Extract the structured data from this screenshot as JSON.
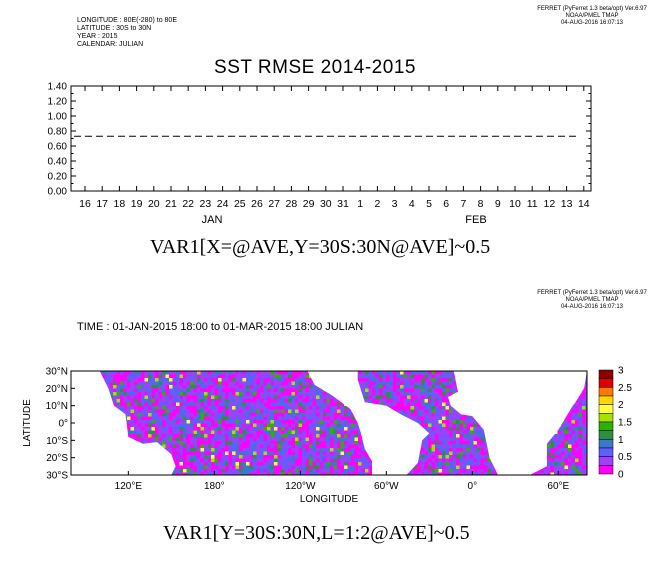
{
  "top_meta": {
    "longitude": "LONGITUDE : 80E(-280) to 80E",
    "latitude": "LATITUDE : 30S to 30N",
    "year": "YEAR : 2015",
    "calendar": "CALENDAR: JULIAN"
  },
  "ferret_credit_1": {
    "line1": "FERRET (PyFerret 1.3 beta/opt) Ver.6.97",
    "line2": "NOAA/PMEL TMAP",
    "line3": "04-AUG-2016 16:07:13"
  },
  "ferret_credit_2": {
    "line1": "FERRET (PyFerret 1.3 beta/opt) Ver.6.97",
    "line2": "NOAA/PMEL TMAP",
    "line3": "04-AUG-2016 16:07:13"
  },
  "chart_data": [
    {
      "type": "line",
      "title": "SST RMSE 2014-2015",
      "xlabel": "VAR1[X=@AVE,Y=30S:30N@AVE]~0.5",
      "ylabel": "",
      "ylim": [
        0,
        1.4
      ],
      "y_ticks": [
        "1.40",
        "1.20",
        "1.00",
        "0.80",
        "0.60",
        "0.40",
        "0.20",
        "0.00"
      ],
      "x_tick_labels": [
        "16",
        "17",
        "18",
        "19",
        "20",
        "21",
        "22",
        "23",
        "24",
        "25",
        "26",
        "27",
        "28",
        "29",
        "30",
        "31",
        "1",
        "2",
        "3",
        "4",
        "5",
        "6",
        "7",
        "8",
        "9",
        "10",
        "11",
        "12",
        "13",
        "14"
      ],
      "month_labels": [
        "JAN",
        "FEB"
      ],
      "series": [
        {
          "style": "dashed",
          "x_start": "16-JAN-2015",
          "x_end": "14-FEB-2015",
          "values": [
            0.73,
            0.73
          ]
        }
      ],
      "grid": false
    },
    {
      "type": "heatmap",
      "subtitle": "TIME : 01-JAN-2015 18:00 to 01-MAR-2015 18:00 JULIAN",
      "xlabel": "LONGITUDE",
      "ylabel": "LATITUDE",
      "caption": "VAR1[Y=30S:30N,L=1:2@AVE]~0.5",
      "y_ticks": [
        "30°N",
        "20°N",
        "10°N",
        "0°",
        "10°S",
        "20°S",
        "30°S"
      ],
      "x_ticks": [
        "120°E",
        "180°",
        "120°W",
        "60°W",
        "0°",
        "60°E"
      ],
      "colorbar": {
        "labels": [
          "3",
          "2.5",
          "2",
          "1.5",
          "1",
          "0.5",
          "0"
        ],
        "colors": [
          "#8a0000",
          "#e00000",
          "#ff7a00",
          "#ffd800",
          "#ffff40",
          "#a8e000",
          "#30b000",
          "#2f8f40",
          "#3a78c8",
          "#5f5fff",
          "#a040ff",
          "#ff00ff"
        ]
      }
    }
  ]
}
